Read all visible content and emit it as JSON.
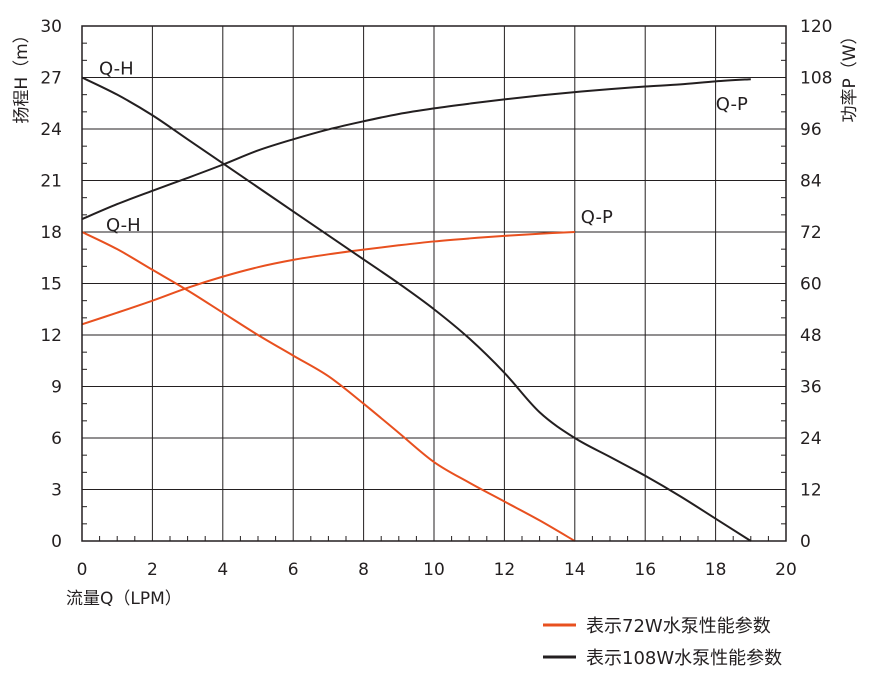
{
  "chart_data": {
    "type": "line",
    "left_axis": {
      "label": "扬程H（m）",
      "range": [
        0,
        30
      ],
      "ticks": [
        "0",
        "3",
        "6",
        "9",
        "12",
        "15",
        "18",
        "21",
        "24",
        "27",
        "30"
      ]
    },
    "right_axis": {
      "label": "功率P（W）",
      "range": [
        0,
        120
      ],
      "ticks": [
        "0",
        "12",
        "24",
        "36",
        "48",
        "60",
        "72",
        "84",
        "96",
        "108",
        "120"
      ]
    },
    "x_axis": {
      "label": "流量Q（LPM）",
      "range": [
        0,
        20
      ],
      "ticks": [
        "0",
        "2",
        "4",
        "6",
        "8",
        "10",
        "12",
        "14",
        "16",
        "18",
        "20"
      ]
    },
    "grid": true,
    "series": [
      {
        "name": "表示72W水泵性能参数",
        "color": "#e8501f",
        "curves": [
          {
            "label": "Q-H",
            "axis": "left",
            "x": [
              0,
              1,
              2,
              3,
              4,
              5,
              6,
              7,
              8,
              9,
              10,
              11,
              12,
              13,
              14
            ],
            "y": [
              18,
              17,
              15.8,
              14.6,
              13.3,
              12,
              10.8,
              9.6,
              8,
              6.3,
              4.6,
              3.4,
              2.3,
              1.2,
              0
            ]
          },
          {
            "label": "Q-P",
            "axis": "right",
            "x": [
              0,
              1,
              2,
              3,
              4,
              5,
              6,
              7,
              8,
              9,
              10,
              11,
              12,
              13,
              14
            ],
            "y": [
              50.5,
              53.2,
              56,
              59,
              61.6,
              63.8,
              65.5,
              66.8,
              67.9,
              68.9,
              69.8,
              70.5,
              71.1,
              71.6,
              72
            ]
          }
        ]
      },
      {
        "name": "表示108W水泵性能参数",
        "color": "#231f20",
        "curves": [
          {
            "label": "Q-H",
            "axis": "left",
            "x": [
              0,
              1,
              2,
              3,
              4,
              5,
              6,
              7,
              8,
              9,
              10,
              11,
              12,
              13,
              14,
              15,
              16,
              17,
              18,
              19
            ],
            "y": [
              27,
              26,
              24.8,
              23.4,
              22,
              20.6,
              19.2,
              17.8,
              16.4,
              15,
              13.5,
              11.8,
              9.8,
              7.5,
              6,
              4.9,
              3.8,
              2.6,
              1.3,
              0
            ]
          },
          {
            "label": "Q-P",
            "axis": "right",
            "x": [
              0,
              1,
              2,
              3,
              4,
              5,
              6,
              7,
              8,
              9,
              10,
              11,
              12,
              13,
              14,
              15,
              16,
              17,
              18,
              19
            ],
            "y": [
              75,
              78.5,
              81.6,
              84.6,
              87.7,
              91,
              93.6,
              95.9,
              97.8,
              99.5,
              100.8,
              101.9,
              102.9,
              103.8,
              104.6,
              105.3,
              105.9,
              106.4,
              107.1,
              107.6
            ]
          }
        ]
      }
    ],
    "legend": {
      "placement": "bottom-right"
    }
  }
}
